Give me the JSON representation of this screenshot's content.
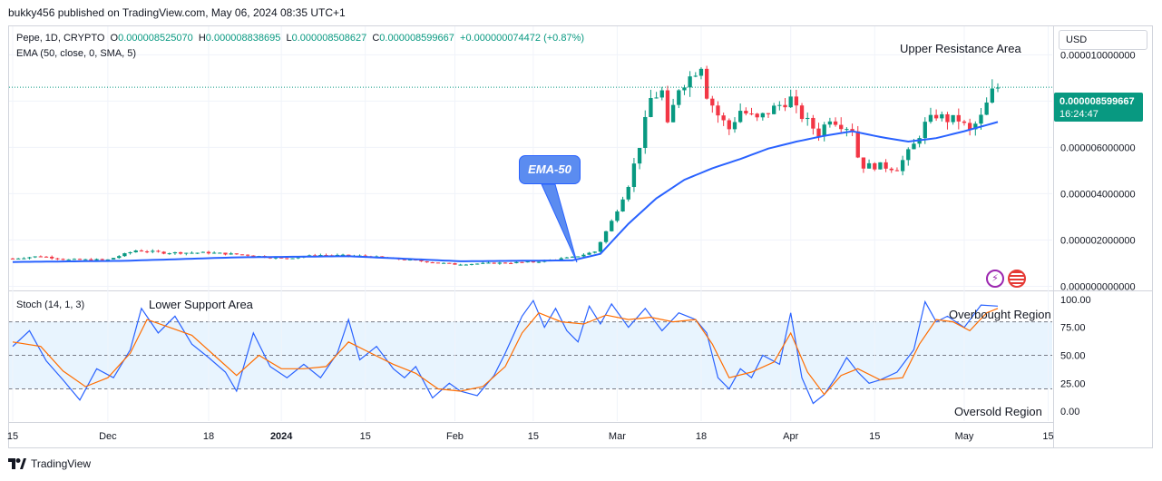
{
  "header": {
    "publisher": "bukky456 published on TradingView.com, May 06, 2024 08:35 UTC+1"
  },
  "legend": {
    "symbol": "Pepe, 1D, CRYPTO",
    "o_label": "O",
    "o": "0.000008525070",
    "h_label": "H",
    "h": "0.000008838695",
    "l_label": "L",
    "l": "0.000008508627",
    "c_label": "C",
    "c": "0.000008599667",
    "change": "+0.000000074472 (+0.87%)",
    "ema": "EMA (50, close, 0, SMA, 5)",
    "stoch": "Stoch (14, 1, 3)"
  },
  "price_axis": {
    "currency": "USD",
    "last_price": "0.000008599667",
    "countdown": "16:24:47"
  },
  "annotations": {
    "upper": "Upper Resistance Area",
    "lower": "Lower Support Area",
    "overbought": "Overbought Region",
    "oversold": "Oversold Region",
    "ema_bubble": "EMA-50"
  },
  "footer": {
    "brand": "TradingView"
  },
  "colors": {
    "up": "#089981",
    "down": "#f23645",
    "ema": "#2962ff",
    "stoch_k": "#2962ff",
    "stoch_d": "#ff6d00",
    "band": "#2196f3"
  },
  "icons": [
    "tradingview-logo-icon",
    "flash-icon",
    "us-flag-icon"
  ],
  "chart_data": [
    {
      "type": "candlestick",
      "title": "",
      "series": [
        {
          "name": "Pepe, 1D, CRYPTO"
        },
        {
          "name": "EMA (50, close, 0, SMA, 5)"
        }
      ],
      "x_ticks": [
        "15",
        "Dec",
        "18",
        "2024",
        "15",
        "Feb",
        "15",
        "Mar",
        "18",
        "Apr",
        "15",
        "May",
        "15"
      ],
      "x_tick_index": [
        0,
        17,
        35,
        48,
        63,
        79,
        93,
        108,
        123,
        139,
        154,
        170,
        185
      ],
      "y_ticks": [
        "0.000010000000",
        "0.000008000000",
        "0.000006000000",
        "0.000004000000",
        "0.000002000000",
        "0.000000000000"
      ],
      "y_tick_values": [
        1e-05,
        8e-06,
        6e-06,
        4e-06,
        2e-06,
        0
      ],
      "ylim": [
        -1e-07,
        1.08e-05
      ],
      "close_keypoints": [
        [
          0,
          1.2e-06
        ],
        [
          5,
          1.3e-06
        ],
        [
          10,
          1.15e-06
        ],
        [
          17,
          1.15e-06
        ],
        [
          22,
          1.55e-06
        ],
        [
          27,
          1.45e-06
        ],
        [
          35,
          1.45e-06
        ],
        [
          42,
          1.35e-06
        ],
        [
          48,
          1.2e-06
        ],
        [
          55,
          1.35e-06
        ],
        [
          63,
          1.3e-06
        ],
        [
          70,
          1.15e-06
        ],
        [
          79,
          9.5e-07
        ],
        [
          86,
          1e-06
        ],
        [
          93,
          1.05e-06
        ],
        [
          100,
          1.25e-06
        ],
        [
          104,
          1.5e-06
        ],
        [
          107,
          2.8e-06
        ],
        [
          110,
          4.4e-06
        ],
        [
          112,
          6.1e-06
        ],
        [
          114,
          8.1e-06
        ],
        [
          116,
          8.4e-06
        ],
        [
          117,
          6.9e-06
        ],
        [
          119,
          8.6e-06
        ],
        [
          121,
          9.05e-06
        ],
        [
          123,
          9.6e-06
        ],
        [
          124,
          8.3e-06
        ],
        [
          126,
          7.4e-06
        ],
        [
          128,
          6.8e-06
        ],
        [
          130,
          7.6e-06
        ],
        [
          133,
          7.2e-06
        ],
        [
          136,
          7.7e-06
        ],
        [
          139,
          8.1e-06
        ],
        [
          140,
          7.6e-06
        ],
        [
          142,
          7.1e-06
        ],
        [
          144,
          6.6e-06
        ],
        [
          146,
          7.3e-06
        ],
        [
          148,
          7e-06
        ],
        [
          150,
          6.8e-06
        ],
        [
          151,
          5.6e-06
        ],
        [
          152,
          5.2e-06
        ],
        [
          155,
          5.2e-06
        ],
        [
          158,
          5.1e-06
        ],
        [
          161,
          6.1e-06
        ],
        [
          163,
          7e-06
        ],
        [
          165,
          7.4e-06
        ],
        [
          167,
          7.2e-06
        ],
        [
          169,
          7.2e-06
        ],
        [
          171,
          6.7e-06
        ],
        [
          173,
          7.3e-06
        ],
        [
          175,
          8.4e-06
        ],
        [
          176,
          8.6e-06
        ]
      ],
      "ema_keypoints": [
        [
          0,
          1.05e-06
        ],
        [
          20,
          1.1e-06
        ],
        [
          40,
          1.25e-06
        ],
        [
          60,
          1.3e-06
        ],
        [
          80,
          1.08e-06
        ],
        [
          100,
          1.12e-06
        ],
        [
          105,
          1.4e-06
        ],
        [
          110,
          2.7e-06
        ],
        [
          115,
          3.8e-06
        ],
        [
          120,
          4.6e-06
        ],
        [
          125,
          5.1e-06
        ],
        [
          130,
          5.5e-06
        ],
        [
          135,
          5.95e-06
        ],
        [
          140,
          6.25e-06
        ],
        [
          145,
          6.5e-06
        ],
        [
          150,
          6.7e-06
        ],
        [
          155,
          6.45e-06
        ],
        [
          160,
          6.25e-06
        ],
        [
          165,
          6.4e-06
        ],
        [
          170,
          6.7e-06
        ],
        [
          176,
          7.1e-06
        ]
      ]
    },
    {
      "type": "line",
      "title": "",
      "series": [
        {
          "name": "Stoch %K"
        },
        {
          "name": "Stoch %D"
        }
      ],
      "y_ticks": [
        "100.00",
        "75.00",
        "50.00",
        "25.00",
        "0.00"
      ],
      "y_tick_values": [
        100,
        75,
        50,
        25,
        0
      ],
      "ylim": [
        -8,
        104
      ],
      "bands": [
        80,
        50,
        20
      ],
      "k_keypoints": [
        [
          0,
          58
        ],
        [
          3,
          72
        ],
        [
          6,
          45
        ],
        [
          9,
          28
        ],
        [
          12,
          10
        ],
        [
          15,
          38
        ],
        [
          18,
          30
        ],
        [
          21,
          55
        ],
        [
          23,
          92
        ],
        [
          26,
          70
        ],
        [
          29,
          85
        ],
        [
          32,
          60
        ],
        [
          35,
          48
        ],
        [
          38,
          35
        ],
        [
          40,
          18
        ],
        [
          43,
          70
        ],
        [
          46,
          40
        ],
        [
          49,
          30
        ],
        [
          52,
          42
        ],
        [
          55,
          30
        ],
        [
          58,
          52
        ],
        [
          60,
          82
        ],
        [
          62,
          46
        ],
        [
          65,
          58
        ],
        [
          68,
          38
        ],
        [
          70,
          30
        ],
        [
          72,
          40
        ],
        [
          75,
          12
        ],
        [
          78,
          25
        ],
        [
          80,
          18
        ],
        [
          83,
          14
        ],
        [
          86,
          32
        ],
        [
          88,
          52
        ],
        [
          91,
          85
        ],
        [
          93,
          99
        ],
        [
          95,
          75
        ],
        [
          97,
          92
        ],
        [
          99,
          72
        ],
        [
          101,
          62
        ],
        [
          103,
          94
        ],
        [
          105,
          78
        ],
        [
          107,
          96
        ],
        [
          110,
          75
        ],
        [
          113,
          92
        ],
        [
          116,
          72
        ],
        [
          119,
          88
        ],
        [
          122,
          82
        ],
        [
          124,
          70
        ],
        [
          126,
          30
        ],
        [
          128,
          20
        ],
        [
          130,
          38
        ],
        [
          132,
          30
        ],
        [
          134,
          50
        ],
        [
          137,
          42
        ],
        [
          139,
          88
        ],
        [
          141,
          30
        ],
        [
          143,
          7
        ],
        [
          145,
          15
        ],
        [
          147,
          30
        ],
        [
          149,
          48
        ],
        [
          151,
          35
        ],
        [
          153,
          25
        ],
        [
          155,
          28
        ],
        [
          158,
          35
        ],
        [
          161,
          55
        ],
        [
          163,
          98
        ],
        [
          165,
          80
        ],
        [
          167,
          85
        ],
        [
          170,
          75
        ],
        [
          173,
          95
        ],
        [
          176,
          94
        ]
      ],
      "d_keypoints": [
        [
          0,
          62
        ],
        [
          5,
          58
        ],
        [
          9,
          36
        ],
        [
          13,
          22
        ],
        [
          17,
          30
        ],
        [
          21,
          52
        ],
        [
          24,
          82
        ],
        [
          28,
          75
        ],
        [
          32,
          68
        ],
        [
          36,
          50
        ],
        [
          40,
          32
        ],
        [
          44,
          50
        ],
        [
          48,
          38
        ],
        [
          52,
          38
        ],
        [
          56,
          40
        ],
        [
          60,
          62
        ],
        [
          64,
          52
        ],
        [
          68,
          42
        ],
        [
          72,
          34
        ],
        [
          76,
          20
        ],
        [
          80,
          18
        ],
        [
          84,
          22
        ],
        [
          88,
          40
        ],
        [
          91,
          70
        ],
        [
          94,
          88
        ],
        [
          98,
          80
        ],
        [
          102,
          78
        ],
        [
          106,
          86
        ],
        [
          110,
          82
        ],
        [
          114,
          84
        ],
        [
          118,
          80
        ],
        [
          122,
          82
        ],
        [
          125,
          60
        ],
        [
          128,
          30
        ],
        [
          132,
          35
        ],
        [
          136,
          44
        ],
        [
          139,
          70
        ],
        [
          142,
          35
        ],
        [
          145,
          15
        ],
        [
          148,
          32
        ],
        [
          151,
          38
        ],
        [
          155,
          28
        ],
        [
          159,
          30
        ],
        [
          162,
          60
        ],
        [
          165,
          82
        ],
        [
          168,
          80
        ],
        [
          171,
          72
        ],
        [
          174,
          88
        ],
        [
          176,
          92
        ]
      ]
    }
  ]
}
